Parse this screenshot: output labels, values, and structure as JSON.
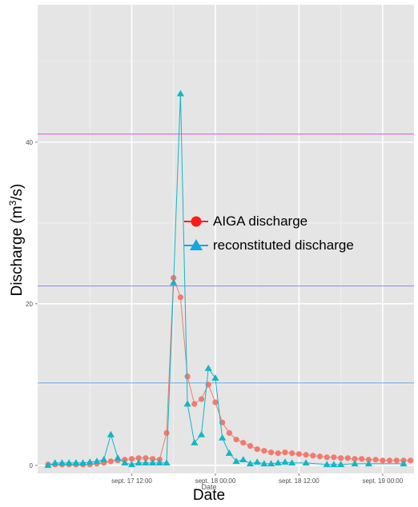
{
  "chart_data": {
    "type": "line",
    "xlabel": "Date",
    "ylabel_main": "Discharge (m",
    "ylabel_sup": "3",
    "ylabel_end": "/s)",
    "x_tick_labels": [
      "sept. 17 12:00",
      "sept. 18 00:00",
      "sept. 18 12:00",
      "sept. 19 00:00"
    ],
    "x_ticks": [
      12,
      24,
      36,
      48
    ],
    "x_range": [
      -1.5,
      52.5
    ],
    "ylim": [
      -1,
      57
    ],
    "y_ticks": [
      0,
      20,
      40
    ],
    "grid": true,
    "legend_position": "center",
    "reference_lines": [
      {
        "y": 41,
        "color": "#dd55dd"
      },
      {
        "y": 22.2,
        "color": "#8888ee"
      },
      {
        "y": 10.2,
        "color": "#66aaee"
      }
    ],
    "series": [
      {
        "name": "AIGA discharge",
        "color": "#f07b6f",
        "marker": "circle",
        "x": [
          0,
          1,
          2,
          3,
          4,
          5,
          6,
          7,
          8,
          9,
          10,
          11,
          12,
          13,
          14,
          15,
          16,
          17,
          18,
          19,
          20,
          21,
          22,
          23,
          24,
          25,
          26,
          27,
          28,
          29,
          30,
          31,
          32,
          33,
          34,
          35,
          36,
          37,
          38,
          39,
          40,
          41,
          42,
          43,
          44,
          45,
          46,
          47,
          48,
          49,
          50,
          51,
          52
        ],
        "values": [
          0.1,
          0.1,
          0.1,
          0.1,
          0.1,
          0.1,
          0.1,
          0.2,
          0.3,
          0.5,
          0.6,
          0.7,
          0.8,
          0.9,
          0.9,
          0.8,
          0.7,
          4.0,
          23.2,
          20.8,
          11.0,
          7.6,
          8.2,
          10.0,
          7.8,
          5.3,
          4.0,
          3.2,
          2.8,
          2.4,
          2.0,
          1.8,
          1.6,
          1.5,
          1.6,
          1.5,
          1.4,
          1.3,
          1.2,
          1.1,
          1.0,
          1.0,
          0.9,
          0.9,
          0.8,
          0.8,
          0.7,
          0.7,
          0.6,
          0.6,
          0.6,
          0.6,
          0.6
        ]
      },
      {
        "name": "reconstituted discharge",
        "color": "#12b6c6",
        "marker": "triangle",
        "x": [
          0,
          1,
          2,
          3,
          4,
          5,
          6,
          7,
          8,
          9,
          10,
          11,
          12,
          13,
          14,
          15,
          16,
          17,
          18,
          19,
          20,
          21,
          22,
          23,
          24,
          25,
          26,
          27,
          28,
          29,
          30,
          31,
          32,
          33,
          34,
          35,
          37,
          40,
          41,
          42,
          44,
          46,
          51
        ],
        "values": [
          0,
          0.3,
          0.3,
          0.3,
          0.3,
          0.3,
          0.4,
          0.5,
          0.7,
          3.8,
          0.9,
          0.3,
          0.1,
          0.3,
          0.3,
          0.3,
          0.3,
          0.3,
          22.6,
          46.0,
          7.6,
          2.8,
          3.8,
          12.0,
          10.8,
          3.4,
          1.5,
          0.5,
          0.7,
          0.2,
          0.4,
          0.2,
          0.2,
          0.3,
          0.4,
          0.3,
          0.3,
          0.1,
          0.1,
          0.1,
          0.2,
          0.2,
          0.2
        ]
      }
    ]
  }
}
